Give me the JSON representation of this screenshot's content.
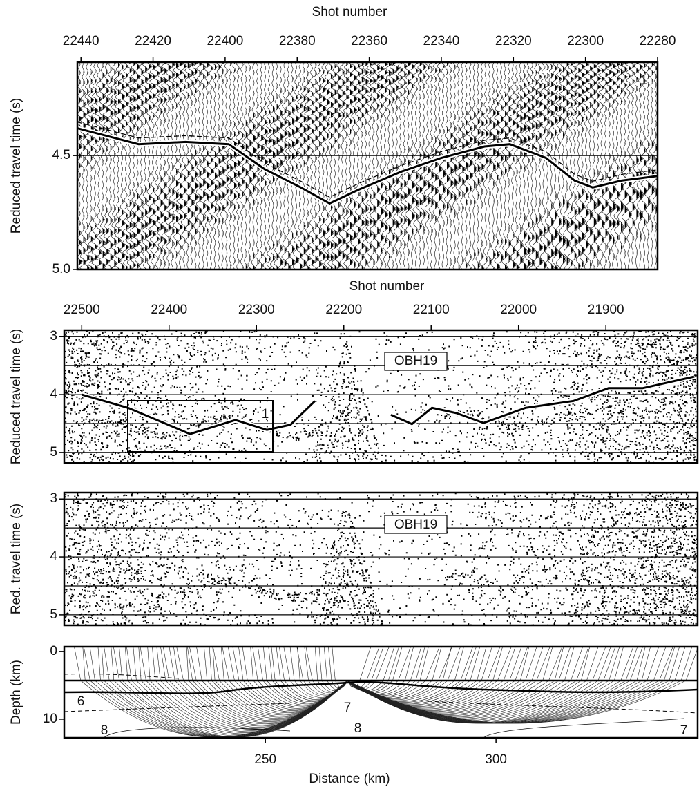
{
  "chart_data": [
    {
      "type": "seismic-wiggle",
      "xlabel": "Shot number",
      "ylabel": "Reduced travel time (s)",
      "xlim": [
        22441,
        22280
      ],
      "xticks": [
        22440,
        22420,
        22400,
        22380,
        22360,
        22340,
        22320,
        22300,
        22280
      ],
      "ylim": [
        4.09,
        5.0
      ],
      "yticks": [
        4.5,
        {
          "value": 5.0,
          "label": "5.0"
        }
      ],
      "ygrid": [
        4.5
      ],
      "annotations": [
        "1"
      ],
      "color": "#000000",
      "x": [
        22441,
        22424,
        22411,
        22399,
        22389,
        22379,
        22371,
        22363,
        22351,
        22340,
        22328,
        22321,
        22311,
        22303,
        22298,
        22290,
        22280
      ],
      "values": [
        4.38,
        4.45,
        4.44,
        4.45,
        4.56,
        4.64,
        4.71,
        4.65,
        4.57,
        4.51,
        4.46,
        4.45,
        4.51,
        4.61,
        4.64,
        4.61,
        4.59
      ]
    },
    {
      "type": "seismic-density",
      "xlabel": "Shot number",
      "ylabel": "Reduced travel time (s)",
      "xlim": [
        22520,
        21795
      ],
      "xticks": [
        22500,
        22400,
        22300,
        22200,
        22100,
        22000,
        21900
      ],
      "ylim": [
        2.89,
        5.18
      ],
      "yticks": [
        3,
        4,
        5
      ],
      "ygrid": [
        3,
        3.5,
        4,
        4.5,
        5
      ],
      "annotations": [
        "OBH19",
        "1"
      ],
      "color": "#000000",
      "x": [
        22500,
        22447,
        22376,
        22324,
        22288,
        22261,
        22233,
        null,
        22146,
        22122,
        22099,
        22071,
        22040,
        21992,
        21937,
        21897,
        21858,
        21799
      ],
      "values": [
        4.0,
        4.23,
        4.68,
        4.44,
        4.61,
        4.52,
        4.11,
        null,
        4.35,
        4.51,
        4.23,
        4.32,
        4.49,
        4.23,
        4.11,
        3.89,
        3.89,
        3.69
      ]
    },
    {
      "type": "seismic-density",
      "ylabel": "Red. travel time (s)",
      "xlim": [
        22520,
        21795
      ],
      "ylim": [
        2.89,
        5.18
      ],
      "yticks": [
        3,
        4,
        5
      ],
      "ygrid": [
        3,
        3.5,
        4,
        4.5,
        5
      ],
      "annotations": [
        "OBH19"
      ]
    },
    {
      "type": "ray-model",
      "xlabel": "Distance (km)",
      "ylabel": "Depth (km)",
      "xlim": [
        206.4,
        343.7
      ],
      "xticks": [
        250,
        300
      ],
      "ylim": [
        -0.7,
        12.76
      ],
      "yticks": [
        0,
        10
      ],
      "annotations": [
        "6",
        "7",
        "8",
        "8",
        "7"
      ]
    }
  ]
}
